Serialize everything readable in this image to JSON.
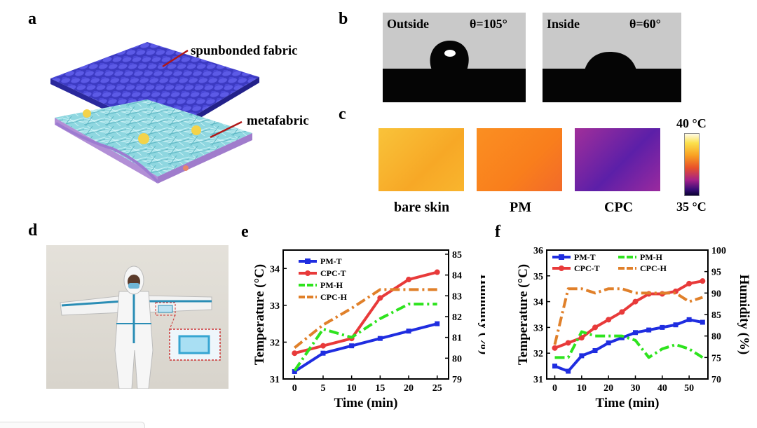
{
  "panels": {
    "a": {
      "label": "a",
      "callout_top": "spunbonded fabric",
      "callout_bottom": "metafabric"
    },
    "b": {
      "label": "b",
      "outside": {
        "text": "Outside",
        "angle": "θ=105°"
      },
      "inside": {
        "text": "Inside",
        "angle": "θ=60°"
      }
    },
    "c": {
      "label": "c",
      "samples": [
        "bare skin",
        "PM",
        "CPC"
      ],
      "sample_colors": [
        "#f9b629",
        "#f98b1f",
        "#8e2aa4"
      ],
      "colorbar_top": "40 °C",
      "colorbar_bottom": "35 °C"
    },
    "d": {
      "label": "d"
    },
    "e": {
      "label": "e"
    },
    "f": {
      "label": "f"
    }
  },
  "chart_data": [
    {
      "panel": "e",
      "type": "line",
      "xlabel": "Time (min)",
      "ylabel": "Temperature (°C)",
      "y2label": "Humidity (%)",
      "xlim": [
        -2,
        27
      ],
      "ylim": [
        31,
        34.5
      ],
      "y2lim": [
        79,
        85.2
      ],
      "xticks": [
        0,
        5,
        10,
        15,
        20,
        25
      ],
      "yticks": [
        31,
        32,
        33,
        34
      ],
      "y2ticks": [
        79,
        80,
        81,
        82,
        83,
        84,
        85
      ],
      "series": [
        {
          "name": "PM-T",
          "axis": "left",
          "color": "#1f2de0",
          "style": "solid",
          "marker": "square",
          "x": [
            0,
            5,
            10,
            15,
            20,
            25
          ],
          "y": [
            31.2,
            31.7,
            31.9,
            32.1,
            32.3,
            32.5
          ]
        },
        {
          "name": "CPC-T",
          "axis": "left",
          "color": "#e83a3a",
          "style": "solid",
          "marker": "circle",
          "x": [
            0,
            5,
            10,
            15,
            20,
            25
          ],
          "y": [
            31.7,
            31.9,
            32.1,
            33.2,
            33.7,
            33.9
          ]
        },
        {
          "name": "PM-H",
          "axis": "right",
          "color": "#2ee31e",
          "style": "dashdot",
          "marker": "none",
          "x": [
            0,
            5,
            10,
            15,
            20,
            25
          ],
          "y": [
            79.4,
            81.4,
            81.0,
            81.9,
            82.6,
            82.6
          ]
        },
        {
          "name": "CPC-H",
          "axis": "right",
          "color": "#e0802a",
          "style": "dashdot",
          "marker": "none",
          "x": [
            0,
            5,
            10,
            15,
            20,
            25
          ],
          "y": [
            80.5,
            81.6,
            82.4,
            83.3,
            83.3,
            83.3
          ]
        }
      ]
    },
    {
      "panel": "f",
      "type": "line",
      "xlabel": "Time (min)",
      "ylabel": "Temperature (°C)",
      "y2label": "Humidity (%)",
      "xlim": [
        -3,
        57
      ],
      "ylim": [
        31,
        36
      ],
      "y2lim": [
        70,
        100
      ],
      "xticks": [
        0,
        10,
        20,
        30,
        40,
        50
      ],
      "yticks": [
        31,
        32,
        33,
        34,
        35,
        36
      ],
      "y2ticks": [
        70,
        75,
        80,
        85,
        90,
        95,
        100
      ],
      "series": [
        {
          "name": "PM-T",
          "axis": "left",
          "color": "#1f2de0",
          "style": "solid",
          "marker": "square",
          "x": [
            0,
            5,
            10,
            15,
            20,
            25,
            30,
            35,
            40,
            45,
            50,
            55
          ],
          "y": [
            31.5,
            31.3,
            31.9,
            32.1,
            32.4,
            32.6,
            32.8,
            32.9,
            33.0,
            33.1,
            33.3,
            33.2
          ]
        },
        {
          "name": "CPC-T",
          "axis": "left",
          "color": "#e83a3a",
          "style": "solid",
          "marker": "circle",
          "x": [
            0,
            5,
            10,
            15,
            20,
            25,
            30,
            35,
            40,
            45,
            50,
            55
          ],
          "y": [
            32.2,
            32.4,
            32.6,
            33.0,
            33.3,
            33.6,
            34.0,
            34.3,
            34.3,
            34.4,
            34.7,
            34.8
          ]
        },
        {
          "name": "PM-H",
          "axis": "right",
          "color": "#2ee31e",
          "style": "dashdot",
          "marker": "none",
          "x": [
            0,
            5,
            10,
            15,
            20,
            25,
            30,
            35,
            40,
            45,
            50,
            55
          ],
          "y": [
            75,
            75,
            81,
            80,
            80,
            80,
            79,
            75,
            77,
            78,
            77,
            75
          ]
        },
        {
          "name": "CPC-H",
          "axis": "right",
          "color": "#e0802a",
          "style": "dashdot",
          "marker": "none",
          "x": [
            0,
            5,
            10,
            15,
            20,
            25,
            30,
            35,
            40,
            45,
            50,
            55
          ],
          "y": [
            78,
            91,
            91,
            90,
            91,
            91,
            90,
            90,
            90,
            90,
            88,
            89
          ]
        }
      ]
    }
  ]
}
